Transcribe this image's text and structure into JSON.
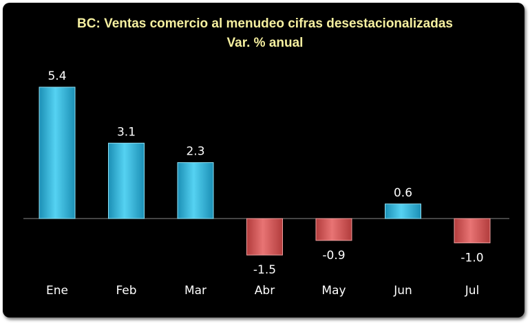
{
  "chart_data": {
    "type": "bar",
    "title": "BC: Ventas comercio al menudeo cifras desestacionalizadas",
    "subtitle": "Var. % anual",
    "categories": [
      "Ene",
      "Feb",
      "Mar",
      "Abr",
      "May",
      "Jun",
      "Jul"
    ],
    "values": [
      5.4,
      3.1,
      2.3,
      -1.5,
      -0.9,
      0.6,
      -1.0
    ],
    "data_labels": [
      "5.4",
      "3.1",
      "2.3",
      "-1.5",
      "-0.9",
      "0.6",
      "-1.0"
    ],
    "xlabel": "",
    "ylabel": "",
    "grid": false,
    "colors": {
      "positive": "#3cc0e4",
      "negative": "#d95a5a",
      "background": "#000000",
      "title": "#f6f0a0"
    }
  }
}
